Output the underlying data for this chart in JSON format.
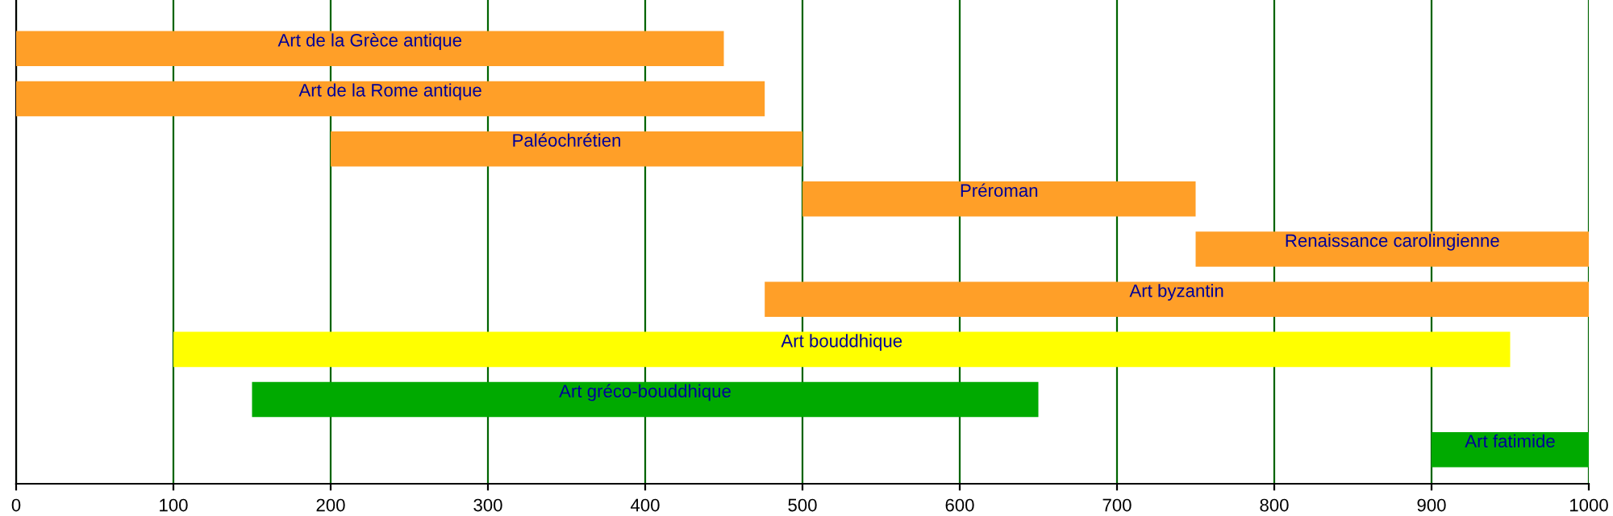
{
  "chart_data": {
    "type": "bar",
    "orientation": "horizontal",
    "categories": [
      "Art de la Grèce antique",
      "Art de la Rome antique",
      "Paléochrétien",
      "Préroman",
      "Renaissance carolingienne",
      "Art byzantin",
      "Art bouddhique",
      "Art gréco-bouddhique",
      "Art fatimide"
    ],
    "base": [
      0,
      0,
      200,
      500,
      750,
      476,
      100,
      150,
      900
    ],
    "values": [
      450,
      476,
      300,
      250,
      250,
      524,
      850,
      500,
      100
    ],
    "colors": [
      "#ff9f28",
      "#ff9f28",
      "#ff9f28",
      "#ff9f28",
      "#ff9f28",
      "#ff9f28",
      "#ffff00",
      "#00aa00",
      "#00aa00"
    ],
    "xlim": [
      0,
      1000
    ],
    "xticks": [
      0,
      100,
      200,
      300,
      400,
      500,
      600,
      700,
      800,
      900,
      1000
    ],
    "grid": "x",
    "tick_labels": "x"
  }
}
